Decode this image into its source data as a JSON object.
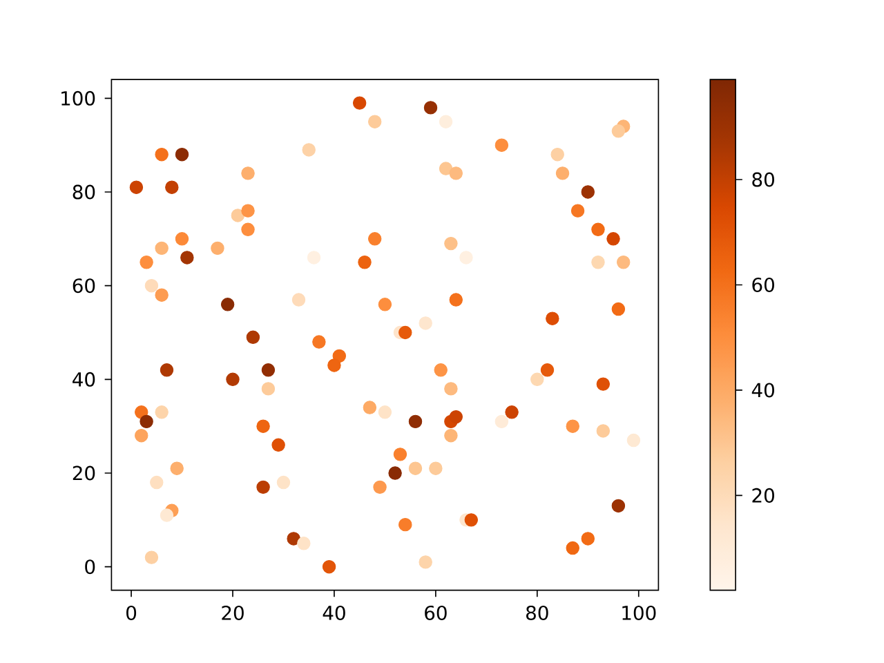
{
  "chart_data": {
    "type": "scatter",
    "marker": "circle",
    "x": [
      1,
      8,
      6,
      10,
      23,
      21,
      23,
      23,
      35,
      45,
      48,
      17,
      6,
      10,
      11,
      3,
      36,
      46,
      48,
      4,
      6,
      19,
      33,
      50,
      24,
      37,
      59,
      62,
      73,
      97,
      96,
      84,
      62,
      64,
      85,
      90,
      88,
      92,
      95,
      63,
      66,
      92,
      97,
      64,
      58,
      53,
      54,
      83,
      96,
      41,
      40,
      7,
      27,
      20,
      27,
      2,
      6,
      3,
      2,
      26,
      29,
      47,
      50,
      9,
      5,
      26,
      30,
      49,
      8,
      7,
      32,
      34,
      4,
      39,
      61,
      63,
      56,
      63,
      64,
      63,
      53,
      56,
      60,
      52,
      54,
      66,
      67,
      58,
      75,
      73,
      80,
      82,
      93,
      87,
      93,
      99,
      96,
      90,
      87
    ],
    "values": [
      81,
      81,
      88,
      88,
      84,
      75,
      76,
      72,
      89,
      99,
      95,
      68,
      68,
      70,
      66,
      65,
      66,
      65,
      70,
      60,
      58,
      56,
      57,
      56,
      49,
      48,
      98,
      95,
      90,
      94,
      93,
      88,
      85,
      84,
      84,
      80,
      76,
      72,
      70,
      69,
      66,
      65,
      65,
      57,
      52,
      50,
      50,
      53,
      55,
      45,
      43,
      42,
      42,
      40,
      38,
      33,
      33,
      31,
      28,
      30,
      26,
      34,
      33,
      21,
      18,
      17,
      18,
      17,
      12,
      11,
      6,
      5,
      2,
      0,
      42,
      38,
      31,
      31,
      32,
      28,
      24,
      21,
      21,
      20,
      9,
      10,
      10,
      1,
      33,
      31,
      40,
      42,
      39,
      30,
      29,
      27,
      13,
      6,
      4
    ],
    "cvalues": [
      78,
      80,
      60,
      95,
      38,
      28,
      48,
      50,
      25,
      75,
      28,
      38,
      36,
      52,
      88,
      50,
      6,
      65,
      55,
      20,
      45,
      96,
      20,
      50,
      85,
      58,
      92,
      8,
      50,
      36,
      28,
      26,
      30,
      34,
      38,
      90,
      58,
      62,
      76,
      32,
      6,
      22,
      34,
      60,
      14,
      15,
      68,
      73,
      62,
      62,
      64,
      85,
      93,
      84,
      28,
      60,
      24,
      95,
      42,
      64,
      72,
      40,
      16,
      38,
      18,
      82,
      16,
      46,
      44,
      12,
      85,
      16,
      26,
      70,
      48,
      34,
      94,
      76,
      78,
      36,
      55,
      30,
      28,
      96,
      56,
      14,
      72,
      24,
      78,
      10,
      22,
      68,
      72,
      48,
      28,
      12,
      90,
      62,
      63
    ],
    "xlim": [
      -3.9,
      103.9
    ],
    "ylim": [
      -5,
      104
    ],
    "xticks": [
      0,
      20,
      40,
      60,
      80,
      100
    ],
    "yticks": [
      0,
      20,
      40,
      60,
      80,
      100
    ],
    "clim": [
      2,
      99
    ],
    "cticks": [
      20,
      40,
      60,
      80
    ]
  }
}
